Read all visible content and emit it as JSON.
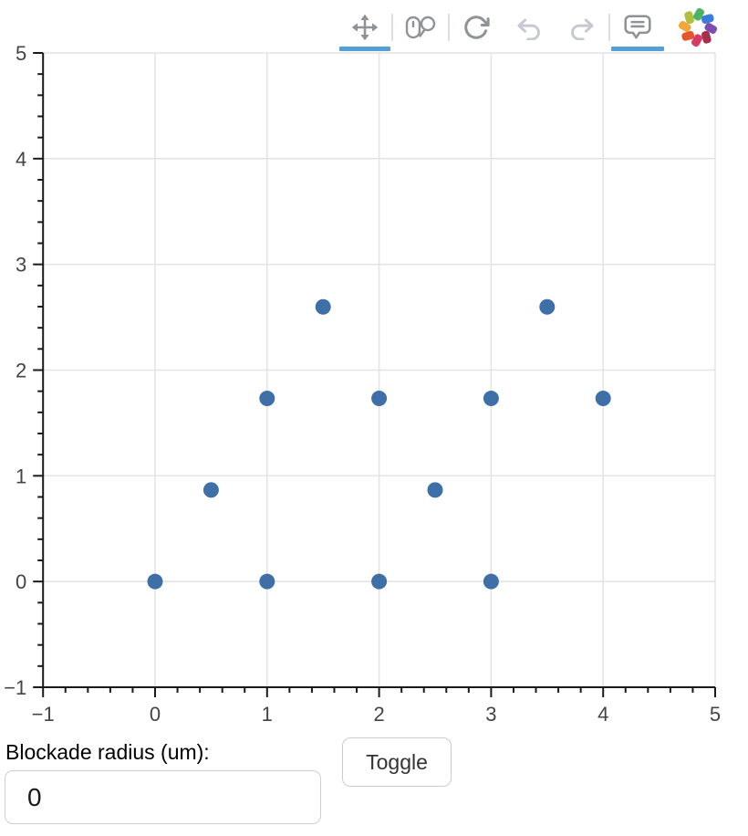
{
  "toolbar": {
    "tools": [
      {
        "name": "pan",
        "icon": "pan-icon",
        "active": true,
        "disabled": false
      },
      {
        "name": "wheel-zoom",
        "icon": "wheel-zoom-icon",
        "active": false,
        "disabled": false
      },
      {
        "name": "reset",
        "icon": "reset-icon",
        "active": false,
        "disabled": false
      },
      {
        "name": "undo",
        "icon": "undo-icon",
        "active": false,
        "disabled": true
      },
      {
        "name": "redo",
        "icon": "redo-icon",
        "active": false,
        "disabled": true
      },
      {
        "name": "hover",
        "icon": "hover-icon",
        "active": true,
        "disabled": false
      }
    ],
    "active_indicator_color": "#52a0d8",
    "logo": {
      "name": "bokeh-logo",
      "petal_colors": [
        "#4eb265",
        "#3b7dd8",
        "#7d4db2",
        "#a62f4e",
        "#d93a63",
        "#e6542c",
        "#f2a63b",
        "#aebf3b"
      ]
    }
  },
  "chart_data": {
    "type": "scatter",
    "points": [
      [
        0,
        0
      ],
      [
        1,
        0
      ],
      [
        2,
        0
      ],
      [
        3,
        0
      ],
      [
        0.5,
        0.866
      ],
      [
        2.5,
        0.866
      ],
      [
        1,
        1.732
      ],
      [
        2,
        1.732
      ],
      [
        3,
        1.732
      ],
      [
        4,
        1.732
      ],
      [
        1.5,
        2.598
      ],
      [
        3.5,
        2.598
      ]
    ],
    "xlim": [
      -1,
      5
    ],
    "ylim": [
      -1,
      5
    ],
    "x_tick_values": [
      -1,
      0,
      1,
      2,
      3,
      4,
      5
    ],
    "x_tick_labels": [
      "−1",
      "0",
      "1",
      "2",
      "3",
      "4",
      "5"
    ],
    "y_tick_values": [
      -1,
      0,
      1,
      2,
      3,
      4,
      5
    ],
    "y_tick_labels": [
      "−1",
      "0",
      "1",
      "2",
      "3",
      "4",
      "5"
    ],
    "minor_tick_step": 0.2,
    "grid": true,
    "grid_color": "#e4e4e4",
    "axis_color": "#1a1a1a",
    "tick_label_color": "#444444",
    "marker_color": "#3e6fa6",
    "marker_diameter_px": 17,
    "title": "",
    "xlabel": "",
    "ylabel": "",
    "legend": null
  },
  "controls": {
    "blockade_label": "Blockade radius (um):",
    "blockade_value": "0",
    "toggle_label": "Toggle"
  }
}
